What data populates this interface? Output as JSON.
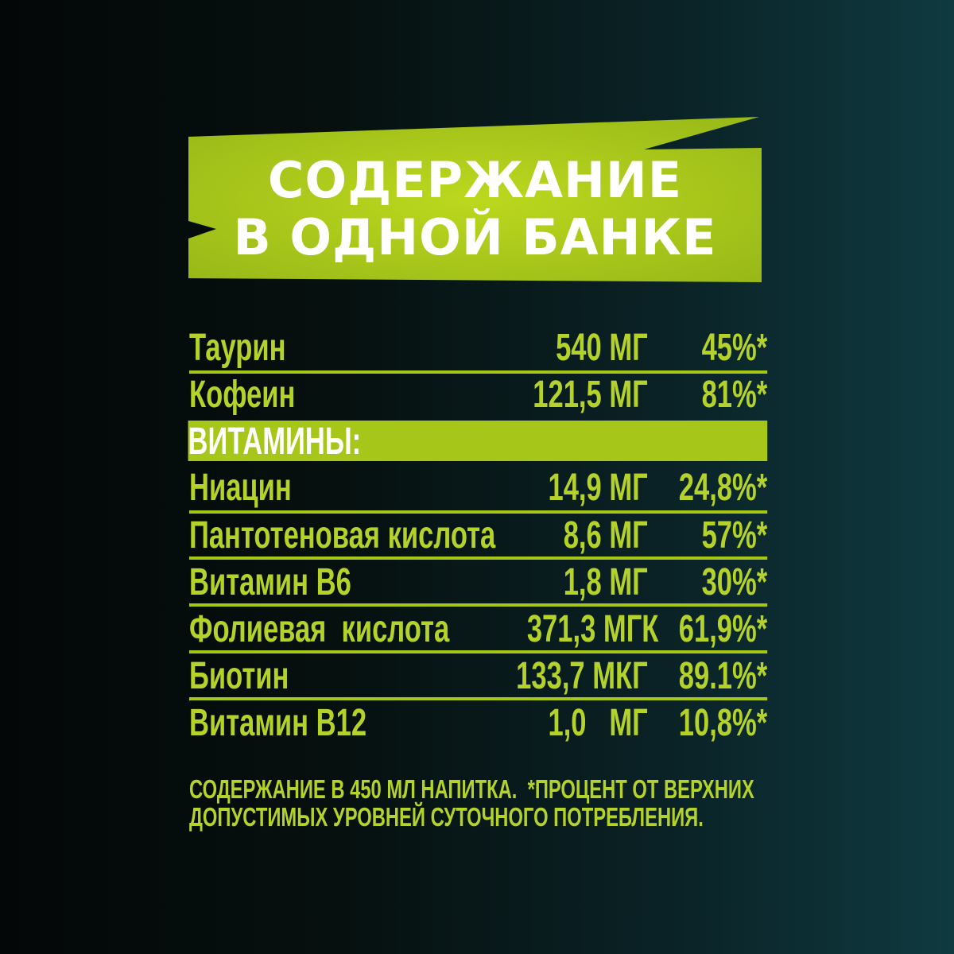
{
  "header": {
    "line1": "СОДЕРЖАНИЕ",
    "line2": "В ОДНОЙ БАНКЕ"
  },
  "colors": {
    "accent": "#a6c71a",
    "text_accent": "#b5d22a",
    "title_text": "#ffffff",
    "background_dark": "#040708",
    "background_teal": "#0f3a40"
  },
  "rows_top": [
    {
      "name": "Таурин",
      "amount": "540 МГ",
      "percent": "45%*"
    },
    {
      "name": "Кофеин",
      "amount": "121,5 МГ",
      "percent": "81%*"
    }
  ],
  "vitamins_label": "ВИТАМИНЫ:",
  "vitamins": [
    {
      "name": "Ниацин",
      "amount": "14,9 МГ",
      "percent": "24,8%*"
    },
    {
      "name": "Пантотеновая кислота",
      "amount": "8,6 МГ",
      "percent": "57%*"
    },
    {
      "name": "Витамин В6",
      "amount": "1,8 МГ",
      "percent": "30%*"
    },
    {
      "name": "Фолиевая  кислота",
      "amount": "371,3 МГК",
      "percent": "61,9%*"
    },
    {
      "name": "Биотин",
      "amount": "133,7 МКГ",
      "percent": "89.1%*"
    },
    {
      "name": "Витамин В12",
      "amount": "1,0   МГ",
      "percent": "10,8%*"
    }
  ],
  "footnote": {
    "line1": "СОДЕРЖАНИЕ В 450 МЛ НАПИТКА.  *ПРОЦЕНТ ОТ ВЕРХНИХ",
    "line2": "ДОПУСТИМЫХ УРОВНЕЙ СУТОЧНОГО ПОТРЕБЛЕНИЯ."
  }
}
